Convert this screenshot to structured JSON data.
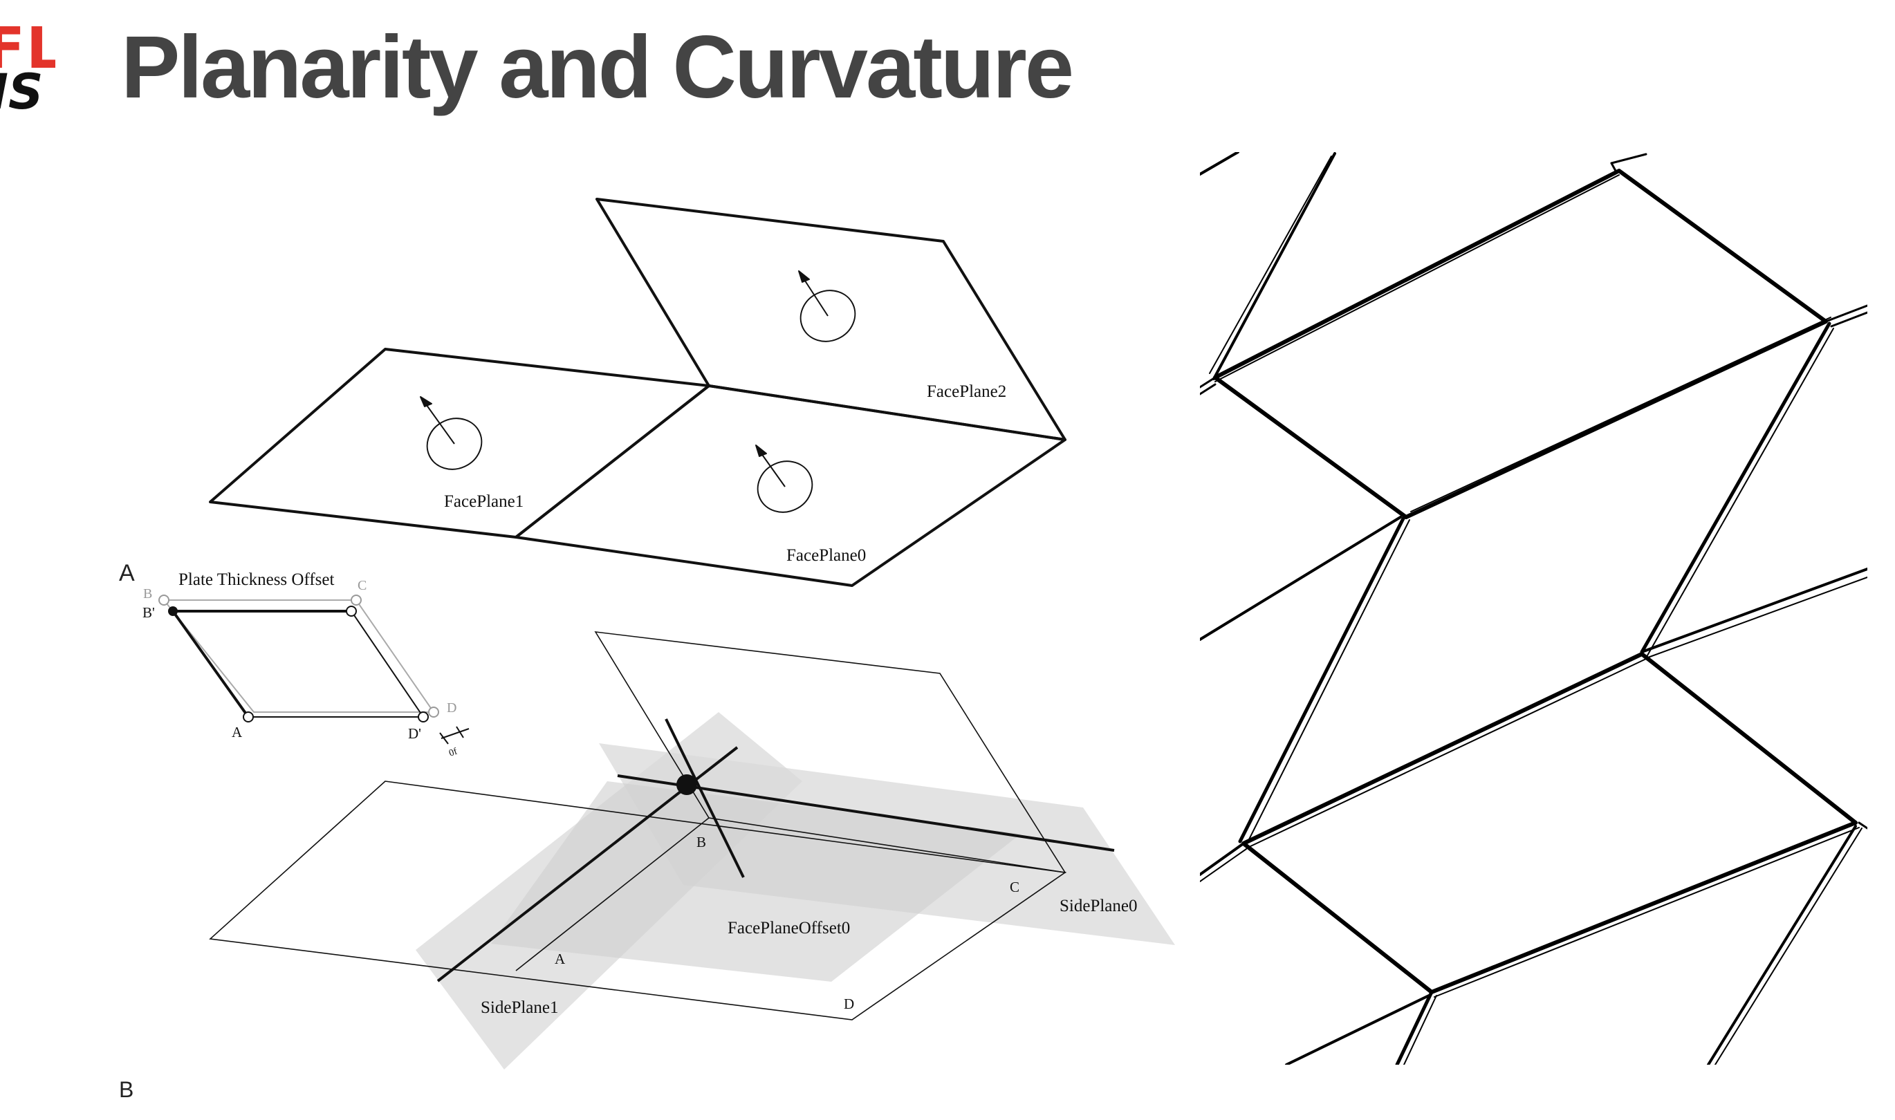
{
  "slide": {
    "title": "Planarity and Curvature",
    "logo": {
      "top_text": "FL",
      "bottom_text": "IS"
    },
    "figure_labels": {
      "a": "A",
      "b": "B"
    }
  },
  "top_diagram": {
    "face_plane_0": "FacePlane0",
    "face_plane_1": "FacePlane1",
    "face_plane_2": "FacePlane2"
  },
  "inset_diagram": {
    "title": "Plate Thickness Offset",
    "points": {
      "b": "B",
      "c": "C",
      "b_prime": "B'",
      "a": "A",
      "d_prime": "D'",
      "d": "D"
    },
    "offset_label": "0f"
  },
  "bottom_diagram": {
    "face_plane_offset_0": "FacePlaneOffset0",
    "side_plane_0": "SidePlane0",
    "side_plane_1": "SidePlane1",
    "points": {
      "a": "A",
      "b": "B",
      "c": "C",
      "d": "D"
    }
  },
  "colors": {
    "logo_red": "#e3342b",
    "title_gray": "#444444",
    "plane_shade": "#d6d6d6"
  }
}
